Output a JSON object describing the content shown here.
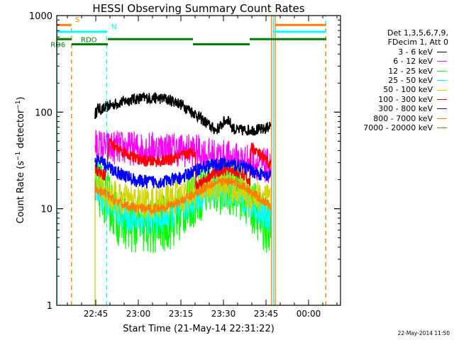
{
  "chart_data": {
    "type": "line",
    "title": "HESSI Observing Summary Count Rates",
    "xlabel": "Start Time (21-May-14 22:31:22)",
    "ylabel": "Count Rate (s⁻¹ detector⁻¹)",
    "yscale": "log",
    "ylim": [
      1,
      1000
    ],
    "xlim_minutes_from_start": [
      0,
      100
    ],
    "start_time": "22:31:22",
    "x_ticks": [
      {
        "label": "22:45",
        "minutes": 13.75
      },
      {
        "label": "23:00",
        "minutes": 28.75
      },
      {
        "label": "23:15",
        "minutes": 43.75
      },
      {
        "label": "23:30",
        "minutes": 58.75
      },
      {
        "label": "23:45",
        "minutes": 73.75
      },
      {
        "label": "00:00",
        "minutes": 88.75
      }
    ],
    "y_ticks": [
      {
        "label": "1",
        "value": 1
      },
      {
        "label": "10",
        "value": 10
      },
      {
        "label": "100",
        "value": 100
      },
      {
        "label": "1000",
        "value": 1000
      }
    ],
    "legend_header": [
      "Det 1,3,5,6,7,9,",
      "FDecim 1, Att 0"
    ],
    "series": [
      {
        "name": "3 - 6 keV",
        "color": "#000000",
        "noise": 0.06,
        "points": [
          [
            13.5,
            95
          ],
          [
            14.5,
            110
          ],
          [
            16,
            105
          ],
          [
            18,
            115
          ],
          [
            22,
            125
          ],
          [
            26,
            135
          ],
          [
            30,
            140
          ],
          [
            34,
            140
          ],
          [
            38,
            138
          ],
          [
            42,
            128
          ],
          [
            45,
            115
          ],
          [
            48,
            100
          ],
          [
            51,
            85
          ],
          [
            54,
            72
          ],
          [
            56,
            65
          ],
          [
            57.5,
            70
          ],
          [
            59,
            80
          ],
          [
            60.5,
            85
          ],
          [
            61.5,
            72
          ],
          [
            63,
            65
          ],
          [
            66,
            65
          ],
          [
            70,
            66
          ],
          [
            73,
            66
          ],
          [
            74.5,
            70
          ],
          [
            75.5,
            75
          ]
        ]
      },
      {
        "name": "6 - 12 keV",
        "color": "#ff00ff",
        "noise": 0.18,
        "points": [
          [
            13.5,
            45
          ],
          [
            18,
            43
          ],
          [
            22,
            43
          ],
          [
            28,
            42
          ],
          [
            34,
            42
          ],
          [
            40,
            42
          ],
          [
            46,
            40
          ],
          [
            48.5,
            40
          ],
          [
            52,
            37
          ],
          [
            56,
            35
          ],
          [
            60,
            34
          ],
          [
            64,
            32
          ],
          [
            68,
            31
          ],
          [
            72,
            29
          ],
          [
            75,
            27
          ],
          [
            75.5,
            26
          ]
        ]
      },
      {
        "name": "12 - 25 keV",
        "color": "#00ff00",
        "noise": 0.3,
        "points": [
          [
            13.5,
            18
          ],
          [
            16,
            15
          ],
          [
            19,
            11
          ],
          [
            22,
            8
          ],
          [
            26,
            7
          ],
          [
            30,
            6.5
          ],
          [
            34,
            6.5
          ],
          [
            38,
            7
          ],
          [
            42,
            8
          ],
          [
            46,
            11
          ],
          [
            48.5,
            13
          ],
          [
            52,
            16
          ],
          [
            56,
            17
          ],
          [
            60,
            17
          ],
          [
            64,
            16
          ],
          [
            68,
            12
          ],
          [
            72,
            8
          ],
          [
            75.5,
            6
          ]
        ]
      },
      {
        "name": "25 - 50 keV",
        "color": "#00ffff",
        "noise": 0.15,
        "points": [
          [
            13.5,
            16
          ],
          [
            16,
            13
          ],
          [
            19,
            10.5
          ],
          [
            22,
            9
          ],
          [
            26,
            8
          ],
          [
            30,
            7.5
          ],
          [
            34,
            7.5
          ],
          [
            38,
            8
          ],
          [
            42,
            9
          ],
          [
            46,
            10.5
          ],
          [
            48.5,
            12
          ],
          [
            52,
            14
          ],
          [
            56,
            15
          ],
          [
            60,
            15
          ],
          [
            64,
            14
          ],
          [
            68,
            11
          ],
          [
            72,
            9
          ],
          [
            75.5,
            8
          ]
        ]
      },
      {
        "name": "50 - 100 keV",
        "color": "#d4d400",
        "noise": 0.18,
        "points": [
          [
            13.5,
            20
          ],
          [
            16,
            16
          ],
          [
            19,
            14
          ],
          [
            22,
            12.5
          ],
          [
            26,
            12
          ],
          [
            30,
            11.5
          ],
          [
            34,
            11.5
          ],
          [
            38,
            12
          ],
          [
            42,
            13
          ],
          [
            46,
            14
          ],
          [
            48.5,
            15
          ],
          [
            52,
            16
          ],
          [
            56,
            17
          ],
          [
            60,
            17
          ],
          [
            64,
            16
          ],
          [
            68,
            14
          ],
          [
            72,
            13
          ],
          [
            75.5,
            12
          ]
        ]
      },
      {
        "name": "100 - 300 keV",
        "color": "#ff0000",
        "noise": 0.06,
        "points": [
          [
            13.5,
            26
          ],
          [
            15,
            24
          ],
          [
            17,
            22
          ],
          [
            18.5,
            50
          ],
          [
            20,
            45
          ],
          [
            24,
            38
          ],
          [
            28,
            33
          ],
          [
            32,
            31
          ],
          [
            36,
            31
          ],
          [
            40,
            32
          ],
          [
            44,
            35
          ],
          [
            46,
            37
          ],
          [
            48,
            38
          ],
          [
            48.8,
            42
          ],
          [
            49,
            17
          ],
          [
            50,
            18
          ],
          [
            54,
            22
          ],
          [
            58,
            25
          ],
          [
            62,
            25
          ],
          [
            66,
            22
          ],
          [
            68,
            19
          ],
          [
            68.5,
            45
          ],
          [
            70,
            40
          ],
          [
            72,
            35
          ],
          [
            74,
            31
          ],
          [
            75.5,
            28
          ]
        ]
      },
      {
        "name": "300 - 800 keV",
        "color": "#0000ff",
        "noise": 0.07,
        "points": [
          [
            13.5,
            32
          ],
          [
            16,
            30
          ],
          [
            18,
            27
          ],
          [
            20,
            25
          ],
          [
            24,
            22
          ],
          [
            28,
            19.5
          ],
          [
            32,
            19
          ],
          [
            36,
            19
          ],
          [
            40,
            19.5
          ],
          [
            44,
            21
          ],
          [
            48,
            24
          ],
          [
            49,
            25
          ],
          [
            50,
            26
          ],
          [
            54,
            28
          ],
          [
            58,
            29
          ],
          [
            62,
            29
          ],
          [
            66,
            27
          ],
          [
            70,
            24
          ],
          [
            73,
            22
          ],
          [
            75.5,
            21
          ]
        ]
      },
      {
        "name": "800 - 7000 keV",
        "color": "#ff8000",
        "noise": 0.05,
        "points": [
          [
            13.5,
            16
          ],
          [
            15,
            15
          ],
          [
            17,
            14.5
          ],
          [
            19,
            13
          ],
          [
            22,
            11.5
          ],
          [
            26,
            10.5
          ],
          [
            30,
            10
          ],
          [
            34,
            10
          ],
          [
            38,
            10.5
          ],
          [
            42,
            11.5
          ],
          [
            46,
            13
          ],
          [
            48.5,
            14
          ],
          [
            50,
            15
          ],
          [
            54,
            18
          ],
          [
            58,
            19
          ],
          [
            62,
            19
          ],
          [
            66,
            17
          ],
          [
            70,
            14
          ],
          [
            73,
            12
          ],
          [
            75.5,
            10.5
          ]
        ]
      },
      {
        "name": "7000 - 20000 keV",
        "color": "#808000",
        "noise": 0,
        "points": []
      }
    ],
    "vertical_markers": [
      {
        "minutes": 0.1,
        "color": "#00ffff",
        "style": "solid",
        "from_value": 1,
        "to_value": 700
      },
      {
        "minutes": 5.2,
        "color": "#ff8000",
        "style": "dashed",
        "from_value": 1,
        "to_value": 800
      },
      {
        "minutes": 13.5,
        "color": "#d4d400",
        "style": "solid",
        "from_value": 1,
        "to_value": 12
      },
      {
        "minutes": 13.5,
        "color": "#ff8000",
        "style": "solid",
        "from_value": 12,
        "to_value": 20
      },
      {
        "minutes": 17.6,
        "color": "#00ffff",
        "style": "dashed",
        "from_value": 1,
        "to_value": 700
      },
      {
        "minutes": 75.7,
        "color": "#ff8000",
        "style": "solid",
        "from_value": 1,
        "to_value": 1000
      },
      {
        "minutes": 76.4,
        "color": "#00ffff",
        "style": "solid",
        "from_value": 1,
        "to_value": 1000
      },
      {
        "minutes": 77.0,
        "color": "#ff8000",
        "style": "solid",
        "from_value": 1,
        "to_value": 1000
      },
      {
        "minutes": 94.8,
        "color": "#00ffff",
        "style": "dashed",
        "from_value": 1,
        "to_value": 1000
      },
      {
        "minutes": 94.8,
        "color": "#ff8000",
        "style": "dashed",
        "from_value": 1,
        "to_value": 800
      }
    ],
    "flag_bars": [
      {
        "label": "S",
        "color": "#ff8000",
        "level": 800,
        "segments": [
          [
            0,
            5.2
          ],
          [
            77,
            95
          ]
        ],
        "label_at": 6.5
      },
      {
        "label": "N",
        "color": "#00ffff",
        "level": 680,
        "segments": [
          [
            0,
            17.8
          ],
          [
            76.4,
            95
          ]
        ],
        "label_at": 19.3
      },
      {
        "label": "RD6",
        "color": "#008000",
        "level": 570,
        "segments": [
          [
            0,
            5.2
          ],
          [
            18,
            48
          ],
          [
            68,
            95
          ]
        ],
        "label_at": -2.2
      },
      {
        "label": "RDO",
        "color": "#008000",
        "level": 505,
        "segments": [
          [
            5.2,
            18
          ],
          [
            48,
            68
          ]
        ],
        "label_at": 8.5
      }
    ]
  },
  "footer": {
    "timestamp": "22-May-2014 11:50"
  }
}
